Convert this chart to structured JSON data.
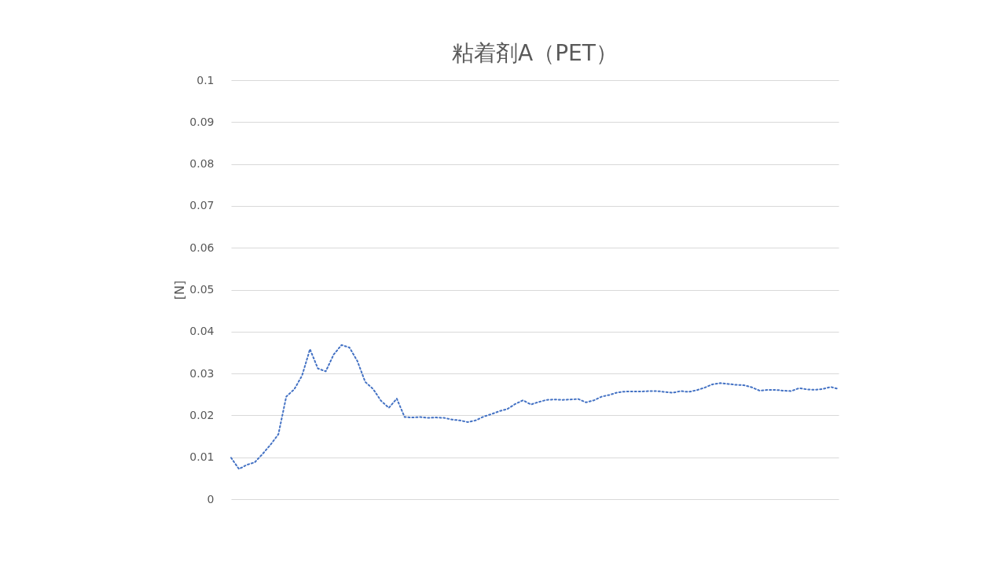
{
  "chart_data": {
    "type": "line",
    "title": "粘着剤A（PET）",
    "ylabel": "[N]",
    "categories": [
      null,
      null,
      null,
      null,
      null,
      null,
      null,
      null,
      null,
      null,
      null,
      null,
      null,
      null,
      null,
      null,
      null,
      null,
      null,
      null,
      null,
      null,
      null,
      null,
      null,
      null,
      null,
      null,
      null,
      null,
      null,
      null,
      null,
      null,
      null,
      null,
      null,
      null,
      null,
      null,
      null,
      null,
      null,
      null,
      null,
      null,
      null,
      null,
      null,
      null,
      null,
      null,
      null,
      null,
      null,
      null,
      null,
      null,
      null,
      null,
      null,
      null,
      null,
      null,
      null,
      null,
      null,
      null,
      null,
      null,
      null,
      null,
      null,
      null,
      null,
      null,
      null,
      null
    ],
    "series": [
      {
        "color": "#4472c4",
        "values": [
          0.0099,
          0.0072,
          0.0082,
          0.0088,
          0.0108,
          0.013,
          0.0155,
          0.0245,
          0.0262,
          0.0295,
          0.0358,
          0.0312,
          0.0305,
          0.0345,
          0.0368,
          0.0362,
          0.033,
          0.028,
          0.0263,
          0.0235,
          0.0218,
          0.024,
          0.0196,
          0.0195,
          0.0196,
          0.0194,
          0.0195,
          0.0194,
          0.019,
          0.0188,
          0.0184,
          0.0188,
          0.0197,
          0.0203,
          0.021,
          0.0215,
          0.0227,
          0.0236,
          0.0226,
          0.0232,
          0.0237,
          0.0238,
          0.0237,
          0.0238,
          0.0239,
          0.0231,
          0.0236,
          0.0245,
          0.0249,
          0.0255,
          0.0257,
          0.0257,
          0.0257,
          0.0258,
          0.0258,
          0.0256,
          0.0254,
          0.0258,
          0.0256,
          0.026,
          0.0266,
          0.0274,
          0.0277,
          0.0275,
          0.0273,
          0.0272,
          0.0267,
          0.0259,
          0.0261,
          0.0261,
          0.0259,
          0.0258,
          0.0265,
          0.0262,
          0.0261,
          0.0263,
          0.0268,
          0.0263
        ]
      }
    ],
    "ylim": [
      0,
      0.1
    ],
    "yticks": [
      0,
      0.01,
      0.02,
      0.03,
      0.04,
      0.05,
      0.06,
      0.07,
      0.08,
      0.09,
      0.1
    ],
    "grid": "y",
    "tick_labels": "y",
    "line_style": "dotted",
    "marker": "none"
  }
}
